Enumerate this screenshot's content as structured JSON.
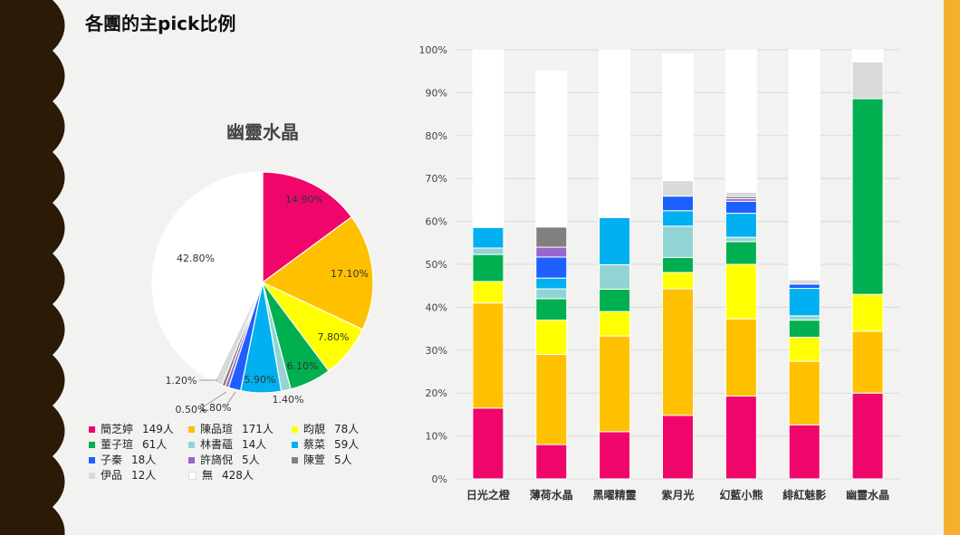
{
  "page": {
    "title": "各團的主pick比例"
  },
  "colors": {
    "accent_right": "#f6ae2d",
    "left_decoration": "#2b1a06"
  },
  "chart_data": [
    {
      "type": "pie",
      "title": "幽靈水晶",
      "slices": [
        {
          "name": "簡芝婷",
          "count_label": "149人",
          "value": 14.9,
          "label": "14.90%",
          "color": "#f0066b"
        },
        {
          "name": "陳品瑄",
          "count_label": "171人",
          "value": 17.1,
          "label": "17.10%",
          "color": "#ffc000"
        },
        {
          "name": "昀靚",
          "count_label": "78人",
          "value": 7.8,
          "label": "7.80%",
          "color": "#ffff00"
        },
        {
          "name": "董子瑄",
          "count_label": "61人",
          "value": 6.1,
          "label": "6.10%",
          "color": "#00b050"
        },
        {
          "name": "林書蘊",
          "count_label": "14人",
          "value": 1.4,
          "label": "1.40%",
          "color": "#92d4d4"
        },
        {
          "name": "蔡菜",
          "count_label": "59人",
          "value": 5.9,
          "label": "5.90%",
          "color": "#00b0f0"
        },
        {
          "name": "子秦",
          "count_label": "18人",
          "value": 1.8,
          "label": "1.80%",
          "color": "#1f5fff"
        },
        {
          "name": "許旖倪",
          "count_label": "5人",
          "value": 0.5,
          "label": "0.50%",
          "color": "#9966cc"
        },
        {
          "name": "陳萱",
          "count_label": "5人",
          "value": 0.5,
          "label": "0.50%",
          "color": "#808080"
        },
        {
          "name": "伊品",
          "count_label": "12人",
          "value": 1.2,
          "label": "1.20%",
          "color": "#d9d9d9"
        },
        {
          "name": "無",
          "count_label": "428人",
          "value": 42.8,
          "label": "42.80%",
          "color": "#ffffff"
        }
      ]
    },
    {
      "type": "bar",
      "stacked": true,
      "categories": [
        "日光之橙",
        "薄荷水晶",
        "黑曜精靈",
        "紫月光",
        "幻藍小熊",
        "緋紅魅影",
        "幽靈水晶"
      ],
      "y_ticks": [
        "0%",
        "10%",
        "20%",
        "30%",
        "40%",
        "50%",
        "60%",
        "70%",
        "80%",
        "90%",
        "100%"
      ],
      "ylim": [
        0,
        100
      ],
      "grid": true,
      "series": [
        {
          "color": "#f0066b",
          "values": [
            16.5,
            8,
            11,
            14.8,
            19.3,
            12.6,
            20
          ]
        },
        {
          "color": "#ffc000",
          "values": [
            24.5,
            21,
            22.3,
            29.5,
            18,
            14.8,
            14.4
          ]
        },
        {
          "color": "#ffff00",
          "values": [
            5,
            8,
            5.7,
            3.8,
            12.7,
            5.6,
            8.6
          ]
        },
        {
          "color": "#00b050",
          "values": [
            6.3,
            5,
            5.2,
            3.5,
            5.3,
            4,
            45.6
          ]
        },
        {
          "color": "#92d4d4",
          "values": [
            1.5,
            2.3,
            5.7,
            7.3,
            1,
            1,
            0
          ]
        },
        {
          "color": "#00b0f0",
          "values": [
            4.8,
            2.5,
            11,
            3.6,
            5.6,
            6.4,
            0
          ]
        },
        {
          "color": "#1f5fff",
          "values": [
            0,
            4.9,
            0,
            3.4,
            2.8,
            1,
            0
          ]
        },
        {
          "color": "#9966cc",
          "values": [
            0,
            2.3,
            0,
            0,
            0.6,
            0,
            0
          ]
        },
        {
          "color": "#808080",
          "values": [
            0,
            4.7,
            0,
            0,
            0.5,
            0,
            0
          ]
        },
        {
          "color": "#d9d9d9",
          "values": [
            0,
            0,
            0,
            3.6,
            1,
            1,
            8.6
          ]
        },
        {
          "color": "#ffffff",
          "values": [
            41.4,
            36.3,
            39.1,
            29.5,
            33.2,
            53.6,
            2.8
          ]
        }
      ]
    }
  ]
}
